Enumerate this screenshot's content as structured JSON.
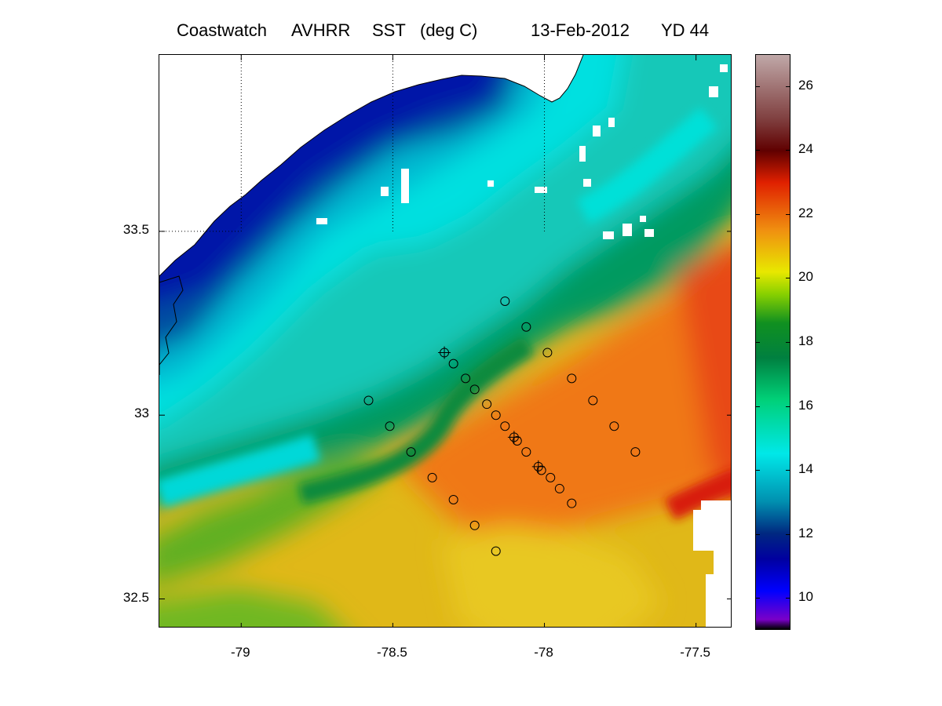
{
  "title": {
    "product": "Coastwatch",
    "sensor": "AVHRR",
    "variable": "SST",
    "units": "(deg C)",
    "date": "13-Feb-2012",
    "yearday": "YD 44"
  },
  "map": {
    "lon_range": [
      -79.27,
      -77.38
    ],
    "lat_range": [
      32.42,
      33.98
    ],
    "lon_ticks": [
      {
        "value": -79,
        "label": "-79"
      },
      {
        "value": -78.5,
        "label": "-78.5"
      },
      {
        "value": -78,
        "label": "-78"
      },
      {
        "value": -77.5,
        "label": "-77.5"
      }
    ],
    "lat_ticks": [
      {
        "value": 33.5,
        "label": "33.5"
      },
      {
        "value": 33,
        "label": "33"
      },
      {
        "value": 32.5,
        "label": "32.5"
      }
    ],
    "gridlines": "dotted, upper-left quadrant only",
    "land_color": "#ffffff",
    "coastline_color": "#000000",
    "missing_data_color": "#ffffff"
  },
  "colorbar": {
    "range": [
      9,
      27
    ],
    "ticks": [
      {
        "value": 10,
        "label": "10"
      },
      {
        "value": 12,
        "label": "12"
      },
      {
        "value": 14,
        "label": "14"
      },
      {
        "value": 16,
        "label": "16"
      },
      {
        "value": 18,
        "label": "18"
      },
      {
        "value": 20,
        "label": "20"
      },
      {
        "value": 22,
        "label": "22"
      },
      {
        "value": 24,
        "label": "24"
      },
      {
        "value": 26,
        "label": "26"
      }
    ],
    "colormap": [
      {
        "value": 9,
        "color": "#000000"
      },
      {
        "value": 9.3,
        "color": "#7a00c8"
      },
      {
        "value": 10.2,
        "color": "#0000ff"
      },
      {
        "value": 11.2,
        "color": "#0000a0"
      },
      {
        "value": 12,
        "color": "#002880"
      },
      {
        "value": 13,
        "color": "#0090b0"
      },
      {
        "value": 14.5,
        "color": "#00e8e8"
      },
      {
        "value": 16.2,
        "color": "#00d078"
      },
      {
        "value": 17.5,
        "color": "#008040"
      },
      {
        "value": 18.6,
        "color": "#109020"
      },
      {
        "value": 19.5,
        "color": "#88d000"
      },
      {
        "value": 20.2,
        "color": "#e8e800"
      },
      {
        "value": 21.5,
        "color": "#f09010"
      },
      {
        "value": 23,
        "color": "#e02000"
      },
      {
        "value": 24,
        "color": "#600000"
      },
      {
        "value": 25,
        "color": "#804040"
      },
      {
        "value": 27,
        "color": "#c0a8a8"
      }
    ]
  },
  "stations": [
    {
      "lon": -78.13,
      "lat": 33.31,
      "marker": "circle"
    },
    {
      "lon": -78.06,
      "lat": 33.24,
      "marker": "circle"
    },
    {
      "lon": -77.99,
      "lat": 33.17,
      "marker": "circle"
    },
    {
      "lon": -77.91,
      "lat": 33.1,
      "marker": "circle"
    },
    {
      "lon": -77.84,
      "lat": 33.04,
      "marker": "circle"
    },
    {
      "lon": -77.77,
      "lat": 32.97,
      "marker": "circle"
    },
    {
      "lon": -77.7,
      "lat": 32.9,
      "marker": "circle"
    },
    {
      "lon": -78.33,
      "lat": 33.17,
      "marker": "circle-plus"
    },
    {
      "lon": -78.3,
      "lat": 33.14,
      "marker": "circle"
    },
    {
      "lon": -78.26,
      "lat": 33.1,
      "marker": "circle"
    },
    {
      "lon": -78.23,
      "lat": 33.07,
      "marker": "circle"
    },
    {
      "lon": -78.19,
      "lat": 33.03,
      "marker": "circle"
    },
    {
      "lon": -78.16,
      "lat": 33.0,
      "marker": "circle"
    },
    {
      "lon": -78.13,
      "lat": 32.97,
      "marker": "circle"
    },
    {
      "lon": -78.1,
      "lat": 32.94,
      "marker": "circle-plus"
    },
    {
      "lon": -78.09,
      "lat": 32.93,
      "marker": "circle"
    },
    {
      "lon": -78.06,
      "lat": 32.9,
      "marker": "circle"
    },
    {
      "lon": -78.02,
      "lat": 32.86,
      "marker": "circle-plus"
    },
    {
      "lon": -78.01,
      "lat": 32.85,
      "marker": "circle"
    },
    {
      "lon": -77.98,
      "lat": 32.83,
      "marker": "circle"
    },
    {
      "lon": -77.95,
      "lat": 32.8,
      "marker": "circle"
    },
    {
      "lon": -77.91,
      "lat": 32.76,
      "marker": "circle"
    },
    {
      "lon": -78.58,
      "lat": 33.04,
      "marker": "circle"
    },
    {
      "lon": -78.51,
      "lat": 32.97,
      "marker": "circle"
    },
    {
      "lon": -78.44,
      "lat": 32.9,
      "marker": "circle"
    },
    {
      "lon": -78.37,
      "lat": 32.83,
      "marker": "circle"
    },
    {
      "lon": -78.3,
      "lat": 32.77,
      "marker": "circle"
    },
    {
      "lon": -78.23,
      "lat": 32.7,
      "marker": "circle"
    },
    {
      "lon": -78.16,
      "lat": 32.63,
      "marker": "circle"
    }
  ]
}
